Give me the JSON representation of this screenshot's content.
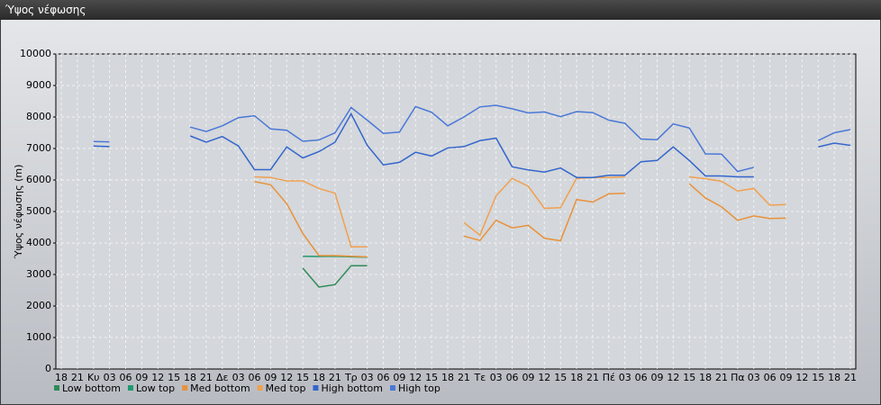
{
  "title": "Ύψος νέφωσης",
  "chart_data": {
    "type": "line",
    "ylabel": "Ύψος νέφωσης (m)",
    "categories": [
      "18",
      "21",
      "Κυ",
      "03",
      "06",
      "09",
      "12",
      "15",
      "18",
      "21",
      "Δε",
      "03",
      "06",
      "09",
      "12",
      "15",
      "18",
      "21",
      "Τρ",
      "03",
      "06",
      "09",
      "12",
      "15",
      "18",
      "21",
      "Τε",
      "03",
      "06",
      "09",
      "12",
      "15",
      "18",
      "21",
      "Πέ",
      "03",
      "06",
      "09",
      "12",
      "15",
      "18",
      "21",
      "Πα",
      "03",
      "06",
      "09",
      "12",
      "15",
      "18",
      "21"
    ],
    "ylim": [
      0,
      10000
    ],
    "yticks": [
      0,
      1000,
      2000,
      3000,
      4000,
      5000,
      6000,
      7000,
      8000,
      9000,
      10000
    ],
    "grid": true,
    "legend": "bottom",
    "series": [
      {
        "name": "Low bottom",
        "color": "#2e8b57",
        "values": [
          null,
          null,
          null,
          null,
          null,
          null,
          null,
          null,
          null,
          null,
          null,
          null,
          null,
          null,
          null,
          3200,
          2600,
          2680,
          3280,
          3280,
          null,
          null,
          null,
          null,
          null,
          null,
          null,
          null,
          null,
          null,
          null,
          null,
          null,
          null,
          null,
          null,
          null,
          null,
          null,
          null,
          null,
          null,
          null,
          null,
          null,
          null,
          null,
          null,
          null,
          null
        ]
      },
      {
        "name": "Low top",
        "color": "#1e9a70",
        "values": [
          null,
          null,
          null,
          null,
          null,
          null,
          null,
          null,
          null,
          null,
          null,
          null,
          null,
          null,
          null,
          3580,
          3570,
          3580,
          3560,
          3550,
          null,
          null,
          null,
          null,
          null,
          null,
          null,
          null,
          null,
          null,
          null,
          null,
          null,
          null,
          null,
          null,
          null,
          null,
          null,
          null,
          null,
          null,
          null,
          null,
          null,
          null,
          null,
          null,
          null,
          null
        ]
      },
      {
        "name": "Med bottom",
        "color": "#e8923a",
        "values": [
          null,
          null,
          null,
          null,
          null,
          null,
          null,
          null,
          null,
          null,
          null,
          null,
          5950,
          5850,
          5250,
          4300,
          3600,
          3600,
          3580,
          3560,
          null,
          null,
          null,
          null,
          null,
          4220,
          4080,
          4720,
          4480,
          4560,
          4150,
          4070,
          5380,
          5300,
          5560,
          5580,
          null,
          null,
          null,
          5880,
          5430,
          5150,
          4720,
          4860,
          4780,
          4790,
          null,
          null,
          null,
          null
        ]
      },
      {
        "name": "Med top",
        "color": "#f0a050",
        "values": [
          null,
          null,
          null,
          null,
          null,
          null,
          null,
          null,
          null,
          null,
          null,
          null,
          6100,
          6080,
          5970,
          5970,
          5730,
          5580,
          3880,
          3880,
          null,
          null,
          null,
          null,
          null,
          4650,
          4250,
          5500,
          6050,
          5800,
          5100,
          5120,
          6050,
          6080,
          6080,
          6100,
          null,
          null,
          null,
          6100,
          6040,
          5960,
          5650,
          5730,
          5200,
          5220,
          null,
          null,
          null,
          null
        ]
      },
      {
        "name": "High bottom",
        "color": "#3366cc",
        "values": [
          null,
          null,
          7080,
          7060,
          null,
          null,
          null,
          null,
          7400,
          7200,
          7380,
          7080,
          6330,
          6330,
          7050,
          6700,
          6900,
          7200,
          8100,
          7100,
          6480,
          6560,
          6880,
          6760,
          7020,
          7060,
          7250,
          7330,
          6420,
          6320,
          6250,
          6380,
          6080,
          6080,
          6150,
          6150,
          6580,
          6620,
          7050,
          6620,
          6130,
          6130,
          6100,
          6100,
          null,
          null,
          null,
          7050,
          7170,
          7100
        ]
      },
      {
        "name": "High top",
        "color": "#4a78d8",
        "values": [
          null,
          null,
          7220,
          7210,
          null,
          null,
          null,
          null,
          7680,
          7540,
          7720,
          7980,
          8040,
          7620,
          7580,
          7230,
          7270,
          7500,
          8300,
          7900,
          7480,
          7520,
          8330,
          8150,
          7720,
          8000,
          8320,
          8370,
          8260,
          8130,
          8160,
          8010,
          8170,
          8140,
          7900,
          7800,
          7300,
          7280,
          7780,
          7650,
          6830,
          6820,
          6270,
          6400,
          null,
          null,
          null,
          7250,
          7500,
          7600
        ]
      }
    ]
  }
}
